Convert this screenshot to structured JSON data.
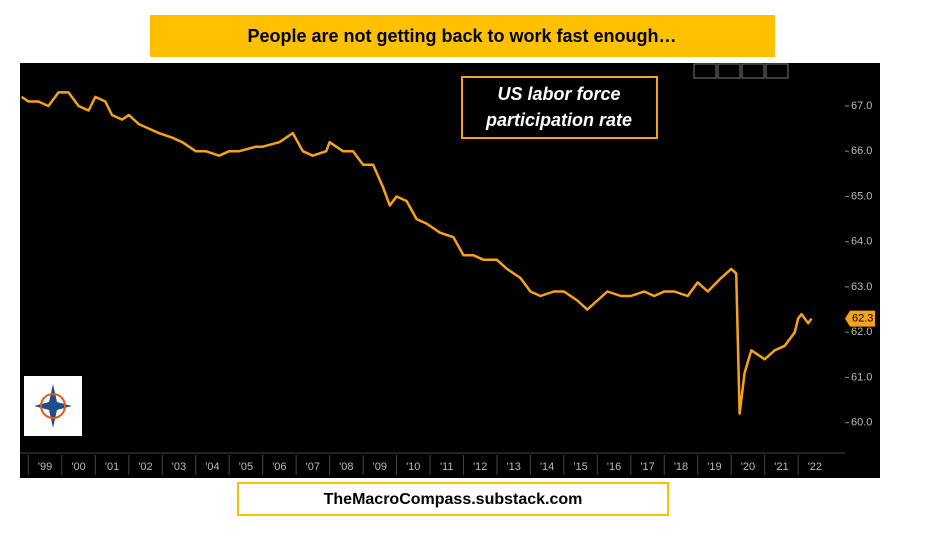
{
  "chart_data": {
    "type": "line",
    "title": "People are not getting back to work fast enough…",
    "annotation": [
      "US labor force",
      "participation rate"
    ],
    "source": "TheMacroCompass.substack.com",
    "color": "#f7a21b",
    "grid": false,
    "xlim": [
      1998.75,
      2023.4
    ],
    "ylim": [
      59.33,
      67.95
    ],
    "xticks": [
      {
        "value": 1999,
        "label": "'99"
      },
      {
        "value": 2000,
        "label": "'00"
      },
      {
        "value": 2001,
        "label": "'01"
      },
      {
        "value": 2002,
        "label": "'02"
      },
      {
        "value": 2003,
        "label": "'03"
      },
      {
        "value": 2004,
        "label": "'04"
      },
      {
        "value": 2005,
        "label": "'05"
      },
      {
        "value": 2006,
        "label": "'06"
      },
      {
        "value": 2007,
        "label": "'07"
      },
      {
        "value": 2008,
        "label": "'08"
      },
      {
        "value": 2009,
        "label": "'09"
      },
      {
        "value": 2010,
        "label": "'10"
      },
      {
        "value": 2011,
        "label": "'11"
      },
      {
        "value": 2012,
        "label": "'12"
      },
      {
        "value": 2013,
        "label": "'13"
      },
      {
        "value": 2014,
        "label": "'14"
      },
      {
        "value": 2015,
        "label": "'15"
      },
      {
        "value": 2016,
        "label": "'16"
      },
      {
        "value": 2017,
        "label": "'17"
      },
      {
        "value": 2018,
        "label": "'18"
      },
      {
        "value": 2019,
        "label": "'19"
      },
      {
        "value": 2020,
        "label": "'20"
      },
      {
        "value": 2021,
        "label": "'21"
      },
      {
        "value": 2022,
        "label": "'22"
      }
    ],
    "yticks": [
      {
        "value": 60,
        "label": "60.0"
      },
      {
        "value": 61,
        "label": "61.0"
      },
      {
        "value": 62,
        "label": "62.0"
      },
      {
        "value": 63,
        "label": "63.0"
      },
      {
        "value": 64,
        "label": "64.0"
      },
      {
        "value": 65,
        "label": "65.0"
      },
      {
        "value": 66,
        "label": "66.0"
      },
      {
        "value": 67,
        "label": "67.0"
      }
    ],
    "x": [
      1998.8,
      1999.0,
      1999.3,
      1999.6,
      1999.9,
      2000.2,
      2000.5,
      2000.8,
      2001.0,
      2001.3,
      2001.5,
      2001.8,
      2002.0,
      2002.3,
      2002.6,
      2002.9,
      2003.3,
      2003.6,
      2004.0,
      2004.3,
      2004.7,
      2005.0,
      2005.3,
      2005.8,
      2006.0,
      2006.5,
      2006.9,
      2007.2,
      2007.5,
      2007.9,
      2008.0,
      2008.4,
      2008.7,
      2009.0,
      2009.3,
      2009.6,
      2009.8,
      2010.0,
      2010.3,
      2010.6,
      2010.9,
      2011.3,
      2011.7,
      2012.0,
      2012.3,
      2012.6,
      2013.0,
      2013.3,
      2013.7,
      2014.0,
      2014.3,
      2014.7,
      2015.0,
      2015.4,
      2015.7,
      2016.0,
      2016.3,
      2016.7,
      2017.0,
      2017.4,
      2017.7,
      2018.0,
      2018.3,
      2018.7,
      2019.0,
      2019.3,
      2019.7,
      2020.0,
      2020.15,
      2020.25,
      2020.4,
      2020.6,
      2020.8,
      2021.0,
      2021.3,
      2021.6,
      2021.9,
      2022.0,
      2022.1,
      2022.3,
      2022.4
    ],
    "values": [
      67.2,
      67.1,
      67.1,
      67.0,
      67.3,
      67.3,
      67.0,
      66.9,
      67.2,
      67.1,
      66.8,
      66.7,
      66.8,
      66.6,
      66.5,
      66.4,
      66.3,
      66.2,
      66.0,
      66.0,
      65.9,
      66.0,
      66.0,
      66.1,
      66.1,
      66.2,
      66.4,
      66.0,
      65.9,
      66.0,
      66.2,
      66.0,
      66.0,
      65.7,
      65.7,
      65.2,
      64.8,
      65.0,
      64.9,
      64.5,
      64.4,
      64.2,
      64.1,
      63.7,
      63.7,
      63.6,
      63.6,
      63.4,
      63.2,
      62.9,
      62.8,
      62.9,
      62.9,
      62.7,
      62.5,
      62.7,
      62.9,
      62.8,
      62.8,
      62.9,
      62.8,
      62.9,
      62.9,
      62.8,
      63.1,
      62.9,
      63.2,
      63.4,
      63.3,
      60.2,
      61.1,
      61.6,
      61.5,
      61.4,
      61.6,
      61.7,
      62.0,
      62.3,
      62.4,
      62.2,
      62.3
    ]
  }
}
